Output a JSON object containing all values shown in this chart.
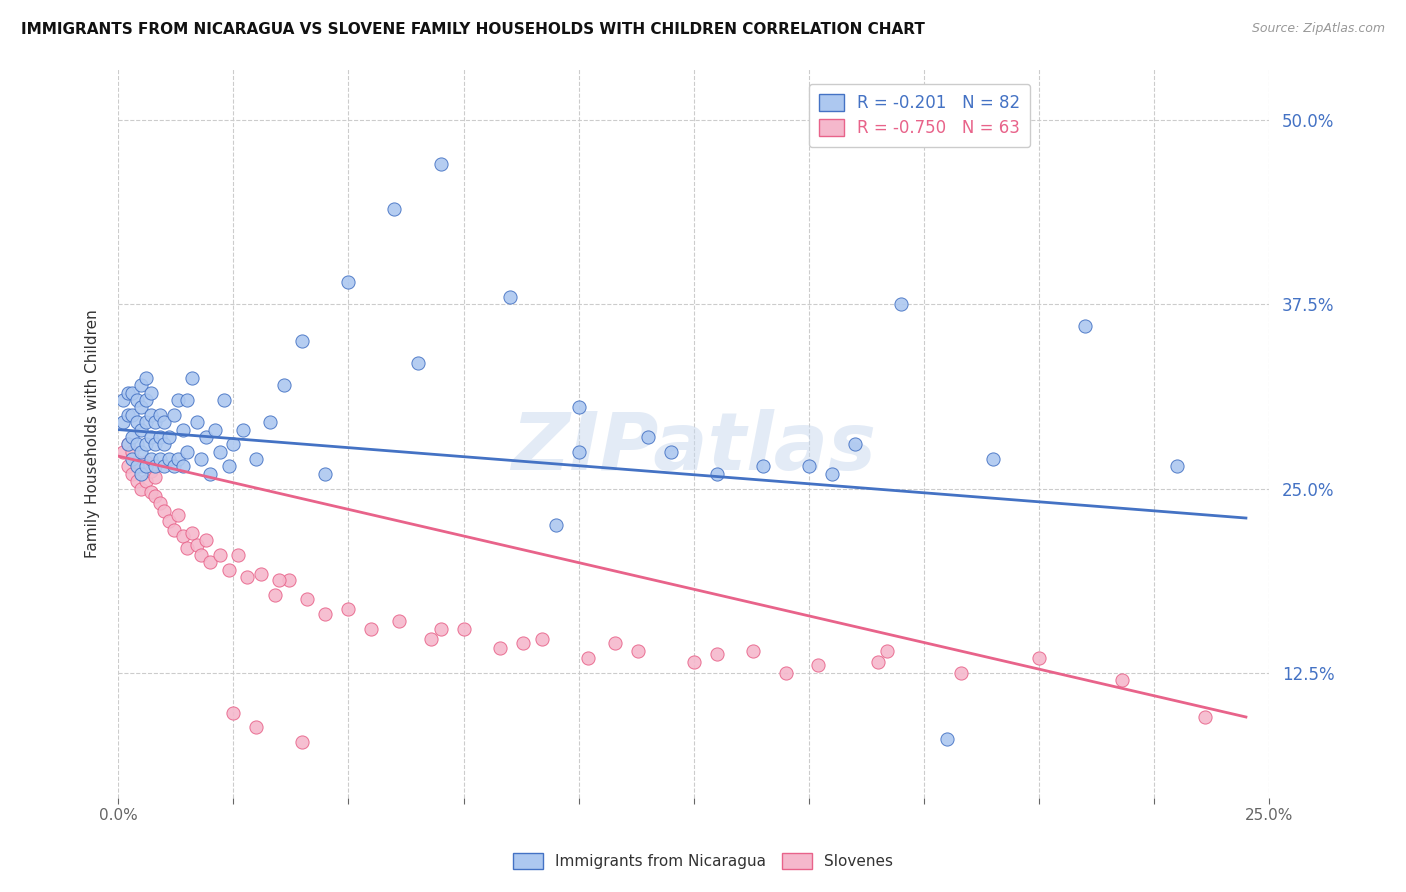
{
  "title": "IMMIGRANTS FROM NICARAGUA VS SLOVENE FAMILY HOUSEHOLDS WITH CHILDREN CORRELATION CHART",
  "source": "Source: ZipAtlas.com",
  "legend_blue_R": "-0.201",
  "legend_blue_N": "82",
  "legend_pink_R": "-0.750",
  "legend_pink_N": "63",
  "legend_label1": "Immigrants from Nicaragua",
  "legend_label2": "Slovenes",
  "ylabel": "Family Households with Children",
  "blue_color": "#adc8f0",
  "pink_color": "#f5b8cc",
  "blue_line_color": "#4472c4",
  "pink_line_color": "#e8638a",
  "watermark": "ZIPatlas",
  "xlim": [
    0.0,
    0.25
  ],
  "ylim": [
    0.04,
    0.535
  ],
  "blue_scatter_x": [
    0.001,
    0.001,
    0.002,
    0.002,
    0.002,
    0.003,
    0.003,
    0.003,
    0.003,
    0.004,
    0.004,
    0.004,
    0.004,
    0.005,
    0.005,
    0.005,
    0.005,
    0.005,
    0.006,
    0.006,
    0.006,
    0.006,
    0.006,
    0.007,
    0.007,
    0.007,
    0.007,
    0.008,
    0.008,
    0.008,
    0.009,
    0.009,
    0.009,
    0.01,
    0.01,
    0.01,
    0.011,
    0.011,
    0.012,
    0.012,
    0.013,
    0.013,
    0.014,
    0.014,
    0.015,
    0.015,
    0.016,
    0.017,
    0.018,
    0.019,
    0.02,
    0.021,
    0.022,
    0.023,
    0.024,
    0.025,
    0.027,
    0.03,
    0.033,
    0.036,
    0.04,
    0.045,
    0.05,
    0.06,
    0.07,
    0.085,
    0.1,
    0.115,
    0.13,
    0.15,
    0.17,
    0.19,
    0.21,
    0.23,
    0.1,
    0.14,
    0.16,
    0.18,
    0.12,
    0.155,
    0.095,
    0.065
  ],
  "blue_scatter_y": [
    0.295,
    0.31,
    0.28,
    0.3,
    0.315,
    0.27,
    0.285,
    0.3,
    0.315,
    0.265,
    0.28,
    0.295,
    0.31,
    0.26,
    0.275,
    0.29,
    0.305,
    0.32,
    0.265,
    0.28,
    0.295,
    0.31,
    0.325,
    0.27,
    0.285,
    0.3,
    0.315,
    0.265,
    0.28,
    0.295,
    0.27,
    0.285,
    0.3,
    0.265,
    0.28,
    0.295,
    0.27,
    0.285,
    0.265,
    0.3,
    0.27,
    0.31,
    0.265,
    0.29,
    0.275,
    0.31,
    0.325,
    0.295,
    0.27,
    0.285,
    0.26,
    0.29,
    0.275,
    0.31,
    0.265,
    0.28,
    0.29,
    0.27,
    0.295,
    0.32,
    0.35,
    0.26,
    0.39,
    0.44,
    0.47,
    0.38,
    0.275,
    0.285,
    0.26,
    0.265,
    0.375,
    0.27,
    0.36,
    0.265,
    0.305,
    0.265,
    0.28,
    0.08,
    0.275,
    0.26,
    0.225,
    0.335
  ],
  "pink_scatter_x": [
    0.001,
    0.002,
    0.002,
    0.003,
    0.003,
    0.004,
    0.004,
    0.005,
    0.005,
    0.006,
    0.006,
    0.007,
    0.007,
    0.008,
    0.008,
    0.009,
    0.01,
    0.011,
    0.012,
    0.013,
    0.014,
    0.015,
    0.016,
    0.017,
    0.018,
    0.019,
    0.02,
    0.022,
    0.024,
    0.026,
    0.028,
    0.031,
    0.034,
    0.037,
    0.041,
    0.045,
    0.05,
    0.055,
    0.061,
    0.068,
    0.075,
    0.083,
    0.092,
    0.102,
    0.113,
    0.125,
    0.138,
    0.152,
    0.167,
    0.183,
    0.2,
    0.218,
    0.236,
    0.13,
    0.145,
    0.165,
    0.108,
    0.088,
    0.07,
    0.035,
    0.025,
    0.04,
    0.03
  ],
  "pink_scatter_y": [
    0.275,
    0.265,
    0.28,
    0.26,
    0.275,
    0.255,
    0.268,
    0.25,
    0.265,
    0.255,
    0.268,
    0.248,
    0.262,
    0.245,
    0.258,
    0.24,
    0.235,
    0.228,
    0.222,
    0.232,
    0.218,
    0.21,
    0.22,
    0.212,
    0.205,
    0.215,
    0.2,
    0.205,
    0.195,
    0.205,
    0.19,
    0.192,
    0.178,
    0.188,
    0.175,
    0.165,
    0.168,
    0.155,
    0.16,
    0.148,
    0.155,
    0.142,
    0.148,
    0.135,
    0.14,
    0.132,
    0.14,
    0.13,
    0.14,
    0.125,
    0.135,
    0.12,
    0.095,
    0.138,
    0.125,
    0.132,
    0.145,
    0.145,
    0.155,
    0.188,
    0.098,
    0.078,
    0.088
  ],
  "blue_line_x": [
    0.0,
    0.245
  ],
  "blue_line_y": [
    0.29,
    0.23
  ],
  "pink_line_x": [
    0.0,
    0.245
  ],
  "pink_line_y": [
    0.272,
    0.095
  ]
}
